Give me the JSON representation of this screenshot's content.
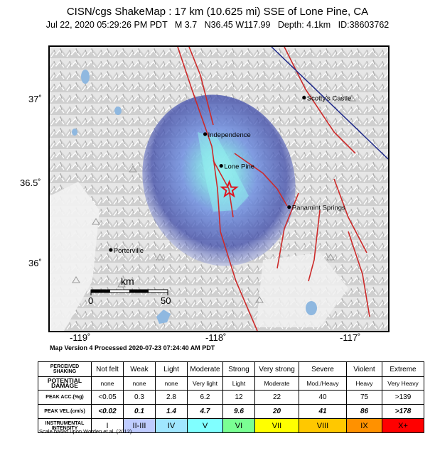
{
  "header": {
    "title": "CISN/cgs ShakeMap : 17 km (10.625 mi) SSE of Lone Pine, CA",
    "subtitle": "Jul 22, 2020 05:29:26 PM PDT   M 3.7   N36.45 W117.99   Depth: 4.1km   ID:38603762"
  },
  "map": {
    "y_ticks": [
      "37˚",
      "36.5˚",
      "36˚"
    ],
    "x_ticks": [
      "-119˚",
      "-118˚",
      "-117˚"
    ],
    "places": [
      {
        "name": "Scotty's Castle",
        "lat": 37.03,
        "lon": -117.34
      },
      {
        "name": "Independence",
        "lat": 36.8,
        "lon": -118.2
      },
      {
        "name": "Lone Pine",
        "lat": 36.6,
        "lon": -118.06
      },
      {
        "name": "Panamint Springs",
        "lat": 36.34,
        "lon": -117.47
      },
      {
        "name": "Porterville",
        "lat": 36.07,
        "lon": -119.02
      }
    ],
    "epicenter": {
      "lat": 36.45,
      "lon": -117.99,
      "marker": "star-icon"
    },
    "scale_bar": {
      "unit": "km",
      "min": "0",
      "max": "50"
    }
  },
  "version_line": "Map Version 4 Processed 2020-07-23 07:24:40 AM PDT",
  "legend": {
    "header_perceived": "PERCEIVED SHAKING",
    "header_damage": "POTENTIAL DAMAGE",
    "header_acc": "PEAK ACC.(%g)",
    "header_vel": "PEAK VEL.(cm/s)",
    "header_intensity": "INSTRUMENTAL INTENSITY",
    "shaking": [
      "Not felt",
      "Weak",
      "Light",
      "Moderate",
      "Strong",
      "Very strong",
      "Severe",
      "Violent",
      "Extreme"
    ],
    "damage": [
      "none",
      "none",
      "none",
      "Very light",
      "Light",
      "Moderate",
      "Mod./Heavy",
      "Heavy",
      "Very Heavy"
    ],
    "acc": [
      "<0.05",
      "0.3",
      "2.8",
      "6.2",
      "12",
      "22",
      "40",
      "75",
      ">139"
    ],
    "vel": [
      "<0.02",
      "0.1",
      "1.4",
      "4.7",
      "9.6",
      "20",
      "41",
      "86",
      ">178"
    ],
    "intensity": [
      "I",
      "II-III",
      "IV",
      "V",
      "VI",
      "VII",
      "VIII",
      "IX",
      "X+"
    ],
    "intensity_colors": [
      "#ffffff",
      "#bfccff",
      "#a0e6ff",
      "#80ffff",
      "#7aff93",
      "#ffff00",
      "#ffc800",
      "#ff9100",
      "#ff0000"
    ],
    "scale_reference": "Scale based upon Worden et al. (2012)"
  }
}
